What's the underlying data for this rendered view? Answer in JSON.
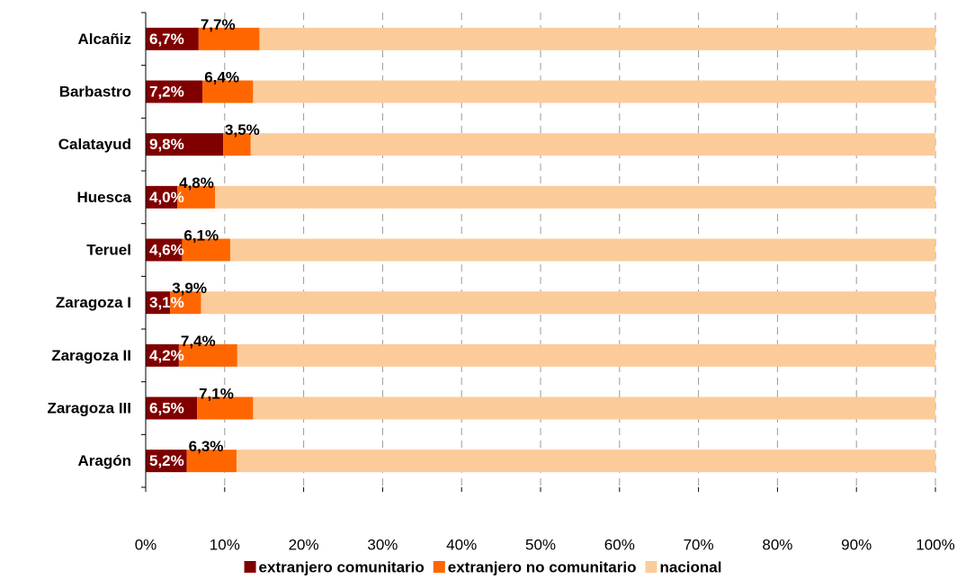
{
  "chart_data": {
    "type": "stacked_barh",
    "categories": [
      "Alcañiz",
      "Barbastro",
      "Calatayud",
      "Huesca",
      "Teruel",
      "Zaragoza I",
      "Zaragoza II",
      "Zaragoza III",
      "Aragón"
    ],
    "series": [
      {
        "name": "extranjero comunitario",
        "color": "#800000",
        "values": [
          6.7,
          7.2,
          9.8,
          4.0,
          4.6,
          3.1,
          4.2,
          6.5,
          5.2
        ],
        "value_labels": [
          "6,7%",
          "7,2%",
          "9,8%",
          "4,0%",
          "4,6%",
          "3,1%",
          "4,2%",
          "6,5%",
          "5,2%"
        ]
      },
      {
        "name": "extranjero no comunitario",
        "color": "#ff6600",
        "values": [
          7.7,
          6.4,
          3.5,
          4.8,
          6.1,
          3.9,
          7.4,
          7.1,
          6.3
        ],
        "value_labels": [
          "7,7%",
          "6,4%",
          "3,5%",
          "4,8%",
          "6,1%",
          "3,9%",
          "7,4%",
          "7,1%",
          "6,3%"
        ]
      },
      {
        "name": "nacional",
        "color": "#fccb9a",
        "values": [
          85.6,
          86.4,
          86.7,
          91.2,
          89.3,
          93.0,
          88.4,
          86.4,
          88.5
        ]
      }
    ],
    "xlim": [
      0,
      100
    ],
    "xticks": [
      {
        "value": 0,
        "label": "0%"
      },
      {
        "value": 10,
        "label": "10%"
      },
      {
        "value": 20,
        "label": "20%"
      },
      {
        "value": 30,
        "label": "30%"
      },
      {
        "value": 40,
        "label": "40%"
      },
      {
        "value": 50,
        "label": "50%"
      },
      {
        "value": 60,
        "label": "60%"
      },
      {
        "value": 70,
        "label": "70%"
      },
      {
        "value": 80,
        "label": "80%"
      },
      {
        "value": 90,
        "label": "90%"
      },
      {
        "value": 100,
        "label": "100%"
      }
    ],
    "grid": true,
    "legend": "bottom"
  }
}
